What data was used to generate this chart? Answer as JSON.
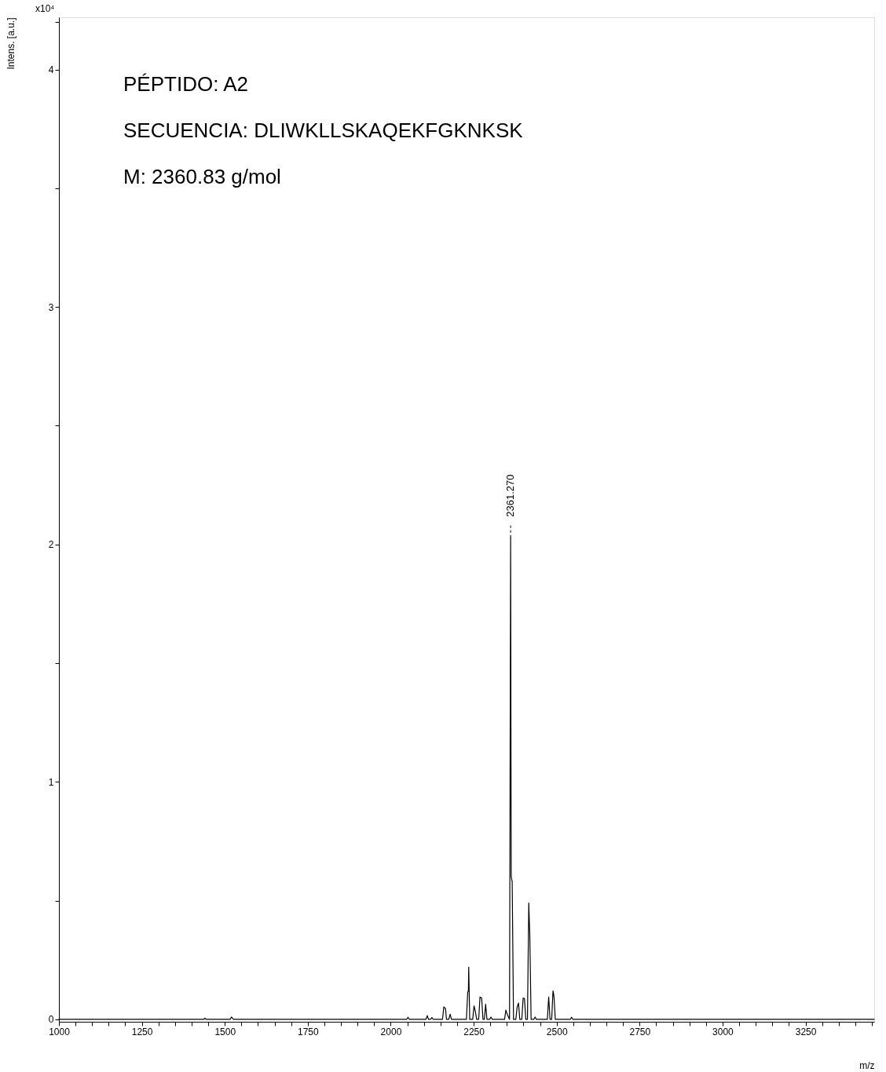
{
  "chart_data": {
    "type": "line",
    "xlabel": "m/z",
    "ylabel": "Intens. [a.u.]",
    "annotations": [
      "x10⁴",
      "PÉPTIDO: A2",
      "SECUENCIA: DLIWKLLSKAQEKFGKNKSK",
      "M: 2360.83 g/mol",
      {
        "text": "2361.270",
        "x": 2361.27,
        "y": 2.03
      }
    ],
    "series": [
      {
        "color": "#000000",
        "x": [
          1000,
          1436,
          1440,
          1444,
          1516,
          1520,
          1526,
          2048,
          2052,
          2056,
          2106,
          2110,
          2114,
          2120,
          2124,
          2128,
          2156,
          2160,
          2162,
          2165,
          2168,
          2175,
          2179,
          2183,
          2228,
          2232,
          2234,
          2235,
          2238,
          2247,
          2251,
          2253,
          2255,
          2259,
          2265,
          2269,
          2271,
          2274,
          2278,
          2282,
          2286,
          2290,
          2298,
          2302,
          2306,
          2343,
          2347,
          2349,
          2351,
          2358,
          2361.27,
          2363,
          2366,
          2370,
          2377,
          2381,
          2383,
          2385,
          2389,
          2395,
          2399,
          2401,
          2403,
          2407,
          2412,
          2416,
          2417.5,
          2419,
          2423,
          2431,
          2435,
          2439,
          2472,
          2476,
          2480,
          2485,
          2489,
          2490.5,
          2492,
          2496,
          2541,
          2545,
          2549,
          3457
        ],
        "values": [
          0,
          0,
          0.005,
          0,
          0,
          0.01,
          0,
          0,
          0.009,
          0,
          0,
          0.016,
          0,
          0,
          0.008,
          0,
          0,
          0.053,
          0.05,
          0.046,
          0,
          0,
          0.022,
          0,
          0,
          0.115,
          0.12,
          0.22,
          0,
          0,
          0.057,
          0.045,
          0.033,
          0,
          0,
          0.094,
          0.092,
          0.09,
          0,
          0,
          0.064,
          0,
          0,
          0.01,
          0,
          0,
          0.039,
          0.03,
          0.022,
          0,
          2.03,
          0.6,
          0.58,
          0,
          0,
          0.053,
          0.06,
          0.069,
          0,
          0,
          0.09,
          0.089,
          0.088,
          0,
          0,
          0.49,
          0.42,
          0.36,
          0,
          0,
          0.01,
          0,
          0,
          0.095,
          0,
          0,
          0.12,
          0.11,
          0.095,
          0,
          0,
          0.009,
          0,
          0
        ]
      }
    ],
    "xlim": [
      1000,
      3457
    ],
    "xticks": [
      1000,
      {
        "value": 1050,
        "label": null
      },
      {
        "value": 1100,
        "label": null
      },
      {
        "value": 1150,
        "label": null
      },
      {
        "value": 1200,
        "label": null
      },
      1250,
      {
        "value": 1300,
        "label": null
      },
      {
        "value": 1350,
        "label": null
      },
      {
        "value": 1400,
        "label": null
      },
      {
        "value": 1450,
        "label": null
      },
      1500,
      {
        "value": 1550,
        "label": null
      },
      {
        "value": 1600,
        "label": null
      },
      {
        "value": 1650,
        "label": null
      },
      {
        "value": 1700,
        "label": null
      },
      1750,
      {
        "value": 1800,
        "label": null
      },
      {
        "value": 1850,
        "label": null
      },
      {
        "value": 1900,
        "label": null
      },
      {
        "value": 1950,
        "label": null
      },
      2000,
      {
        "value": 2050,
        "label": null
      },
      {
        "value": 2100,
        "label": null
      },
      {
        "value": 2150,
        "label": null
      },
      {
        "value": 2200,
        "label": null
      },
      2250,
      {
        "value": 2300,
        "label": null
      },
      {
        "value": 2350,
        "label": null
      },
      {
        "value": 2400,
        "label": null
      },
      {
        "value": 2450,
        "label": null
      },
      2500,
      {
        "value": 2550,
        "label": null
      },
      {
        "value": 2600,
        "label": null
      },
      {
        "value": 2650,
        "label": null
      },
      {
        "value": 2700,
        "label": null
      },
      2750,
      {
        "value": 2800,
        "label": null
      },
      {
        "value": 2850,
        "label": null
      },
      {
        "value": 2900,
        "label": null
      },
      {
        "value": 2950,
        "label": null
      },
      3000,
      {
        "value": 3050,
        "label": null
      },
      {
        "value": 3100,
        "label": null
      },
      {
        "value": 3150,
        "label": null
      },
      {
        "value": 3200,
        "label": null
      },
      3250,
      {
        "value": 3300,
        "label": null
      },
      {
        "value": 3350,
        "label": null
      },
      {
        "value": 3400,
        "label": null
      },
      {
        "value": 3450,
        "label": null
      }
    ],
    "ylim": [
      -0.01,
      4.22
    ],
    "yticks": [
      0,
      {
        "value": 0.5,
        "label": null
      },
      1,
      {
        "value": 1.5,
        "label": null
      },
      2,
      {
        "value": 2.5,
        "label": null
      },
      3,
      {
        "value": 3.5,
        "label": null
      },
      4,
      {
        "value": 4.2,
        "label": null
      }
    ],
    "grid": false,
    "marker": "none",
    "line_style": "solid"
  }
}
